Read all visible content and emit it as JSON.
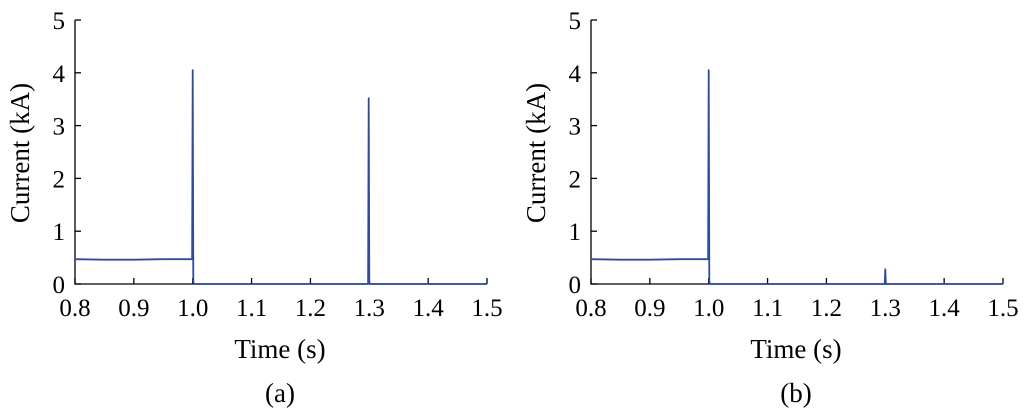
{
  "chart_data": [
    {
      "type": "line",
      "panel_label": "(a)",
      "xlabel": "Time (s)",
      "ylabel": "Current (kA)",
      "xlim": [
        0.8,
        1.5
      ],
      "ylim": [
        0,
        5
      ],
      "x_ticks": [
        "0.8",
        "0.9",
        "1.0",
        "1.1",
        "1.2",
        "1.3",
        "1.4",
        "1.5"
      ],
      "y_ticks": [
        "0",
        "1",
        "2",
        "3",
        "4",
        "5"
      ],
      "grid": false,
      "color": "#2f4b9b",
      "series": [
        {
          "x": [
            0.8,
            0.85,
            0.9,
            0.95,
            0.998,
            0.999,
            1.0,
            1.001,
            1.002,
            1.004,
            1.1,
            1.2,
            1.297,
            1.298,
            1.299,
            1.3,
            1.301,
            1.5
          ],
          "y": [
            0.47,
            0.46,
            0.46,
            0.47,
            0.47,
            0.47,
            4.05,
            0.05,
            0.0,
            0.0,
            0.0,
            0.0,
            0.0,
            0.0,
            3.52,
            0.05,
            0.0,
            0.0
          ]
        }
      ]
    },
    {
      "type": "line",
      "panel_label": "(b)",
      "xlabel": "Time (s)",
      "ylabel": "Current (kA)",
      "xlim": [
        0.8,
        1.5
      ],
      "ylim": [
        0,
        5
      ],
      "x_ticks": [
        "0.8",
        "0.9",
        "1.0",
        "1.1",
        "1.2",
        "1.3",
        "1.4",
        "1.5"
      ],
      "y_ticks": [
        "0",
        "1",
        "2",
        "3",
        "4",
        "5"
      ],
      "grid": false,
      "color": "#2f4b9b",
      "series": [
        {
          "x": [
            0.8,
            0.85,
            0.9,
            0.95,
            0.998,
            0.999,
            1.0,
            1.001,
            1.002,
            1.004,
            1.1,
            1.2,
            1.298,
            1.299,
            1.3,
            1.301,
            1.5
          ],
          "y": [
            0.47,
            0.46,
            0.46,
            0.47,
            0.47,
            0.47,
            4.05,
            0.05,
            0.0,
            0.0,
            0.0,
            0.0,
            0.0,
            0.0,
            0.28,
            0.0,
            0.0
          ]
        }
      ]
    }
  ]
}
